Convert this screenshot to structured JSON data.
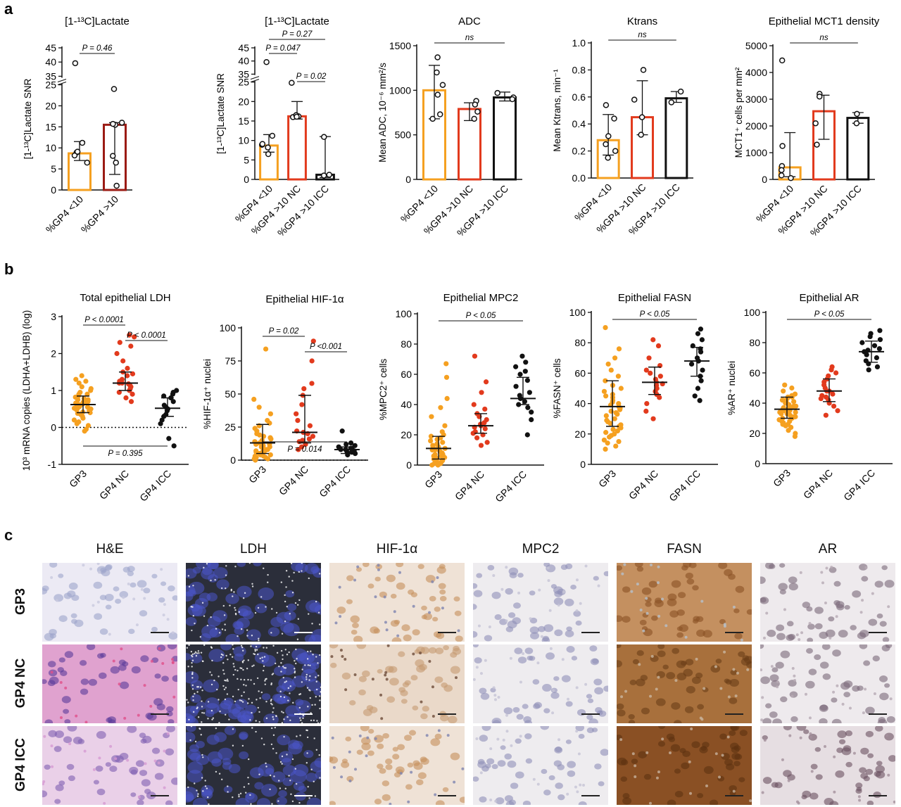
{
  "panel_labels": {
    "a": "a",
    "b": "b",
    "c": "c"
  },
  "colors": {
    "orange": "#f5a020",
    "red": "#e23a1d",
    "darkred": "#9b1b14",
    "black": "#111111"
  },
  "chart_data": [
    {
      "type": "bar",
      "panel": "a",
      "title": "[1-¹³C]Lactate",
      "ylabel": "[1-¹³C]Lactate SNR",
      "categories": [
        "%GP4 <10",
        "%GP4 >10"
      ],
      "values": [
        8.7,
        15.5
      ],
      "ylim": [
        0,
        45
      ],
      "axis_break": [
        25,
        35
      ],
      "yticks": [
        "0",
        "5",
        "10",
        "15",
        "20",
        "25",
        "35",
        "40",
        "45"
      ],
      "points": [
        [
          8.9,
          8.2,
          6.5,
          9.1,
          11.2,
          39.6
        ],
        [
          15.5,
          15.7,
          16.0,
          24.0,
          8.1,
          6.5,
          1.0
        ]
      ],
      "errors": [
        [
          7.0,
          11.5
        ],
        [
          3.7,
          16.0
        ]
      ],
      "colors": [
        "#f5a020",
        "#9b1b14"
      ],
      "annotations": [
        {
          "text": "P = 0.46",
          "from": 0,
          "to": 1
        }
      ]
    },
    {
      "type": "bar",
      "panel": "a",
      "title": "[1-¹³C]Lactate",
      "ylabel": "[1-¹³C]Lactate SNR",
      "categories": [
        "%GP4 <10",
        "%GP4 >10 NC",
        "%GP4 >10 ICC"
      ],
      "values": [
        8.7,
        16.2,
        1.2
      ],
      "ylim": [
        0,
        45
      ],
      "axis_break": [
        25,
        35
      ],
      "yticks": [
        "0",
        "5",
        "10",
        "15",
        "20",
        "25",
        "35",
        "40",
        "45"
      ],
      "points": [
        [
          8.9,
          8.2,
          6.5,
          9.1,
          11.2,
          39.6
        ],
        [
          16.0,
          16.2,
          16.5,
          24.8,
          16.1
        ],
        [
          1.0,
          1.2,
          10.9
        ]
      ],
      "errors": [
        [
          7.0,
          11.5
        ],
        [
          15.5,
          20.0
        ],
        [
          0.5,
          11.0
        ]
      ],
      "colors": [
        "#f5a020",
        "#e23a1d",
        "#111111"
      ],
      "annotations": [
        {
          "text": "P = 0.27",
          "from": 0,
          "to": 2
        },
        {
          "text": "P = 0.047",
          "from": 0,
          "to": 1
        },
        {
          "text": "P = 0.02",
          "from": 1,
          "to": 2
        }
      ]
    },
    {
      "type": "bar",
      "panel": "a",
      "title": "ADC",
      "ylabel": "Mean ADC, 10⁻⁶ mm²/s",
      "categories": [
        "%GP4 <10",
        "%GP4 >10 NC",
        "%GP4 >10 ICC"
      ],
      "values": [
        1000,
        790,
        920
      ],
      "ylim": [
        0,
        1500
      ],
      "yticks": [
        "0",
        "500",
        "1000",
        "1500"
      ],
      "points": [
        [
          1370,
          1200,
          1060,
          950,
          730,
          680
        ],
        [
          880,
          840,
          760,
          680
        ],
        [
          970,
          920,
          900
        ]
      ],
      "errors": [
        [
          680,
          1280
        ],
        [
          660,
          860
        ],
        [
          880,
          980
        ]
      ],
      "colors": [
        "#f5a020",
        "#e23a1d",
        "#111111"
      ],
      "annotations": [
        {
          "text": "ns",
          "from": 0,
          "to": 2
        }
      ]
    },
    {
      "type": "bar",
      "panel": "a",
      "title": "Ktrans",
      "ylabel": "Mean Ktrans, min⁻¹",
      "categories": [
        "%GP4 <10",
        "%GP4 >10 NC",
        "%GP4 >10 ICC"
      ],
      "values": [
        0.28,
        0.45,
        0.59
      ],
      "ylim": [
        0,
        1.0
      ],
      "yticks": [
        "0.0",
        "0.2",
        "0.4",
        "0.6",
        "0.8",
        "1.0"
      ],
      "points": [
        [
          0.54,
          0.44,
          0.31,
          0.25,
          0.2,
          0.15
        ],
        [
          0.8,
          0.58,
          0.45,
          0.32
        ],
        [
          0.64,
          0.56
        ]
      ],
      "errors": [
        [
          0.17,
          0.47
        ],
        [
          0.32,
          0.72
        ],
        [
          0.56,
          0.64
        ]
      ],
      "colors": [
        "#f5a020",
        "#e23a1d",
        "#111111"
      ],
      "annotations": [
        {
          "text": "ns",
          "from": 0,
          "to": 2
        }
      ]
    },
    {
      "type": "bar",
      "panel": "a",
      "title": "Epithelial MCT1 density",
      "ylabel": "MCT1⁺ cells per mm²",
      "categories": [
        "%GP4 <10",
        "%GP4 >10 NC",
        "%GP4 >10 ICC"
      ],
      "values": [
        450,
        2550,
        2300
      ],
      "ylim": [
        0,
        5000
      ],
      "yticks": [
        "0",
        "1000",
        "2000",
        "3000",
        "4000",
        "5000"
      ],
      "points": [
        [
          4450,
          1250,
          500,
          350,
          150,
          50
        ],
        [
          3200,
          3100,
          2100,
          1300
        ],
        [
          2450,
          2100
        ]
      ],
      "errors": [
        [
          100,
          1750
        ],
        [
          1500,
          3150
        ],
        [
          2100,
          2500
        ]
      ],
      "colors": [
        "#f5a020",
        "#e23a1d",
        "#111111"
      ],
      "annotations": [
        {
          "text": "ns",
          "from": 0,
          "to": 2
        }
      ]
    },
    {
      "type": "scatter",
      "panel": "b",
      "title": "Total epithelial LDH",
      "ylabel": "10³ mRNA copies (LDHA+LDHB) (log)",
      "categories": [
        "GP3",
        "GP4 NC",
        "GP4 ICC"
      ],
      "medians": [
        0.62,
        1.2,
        0.52
      ],
      "iqr": [
        [
          0.4,
          0.85
        ],
        [
          1.0,
          1.5
        ],
        [
          0.3,
          0.8
        ]
      ],
      "ylim": [
        -1,
        3
      ],
      "yticks": [
        "-1",
        "0",
        "1",
        "2",
        "3"
      ],
      "series": [
        {
          "values": [
            1.4,
            1.3,
            1.25,
            1.2,
            1.1,
            1.05,
            1.0,
            0.95,
            0.9,
            0.9,
            0.85,
            0.82,
            0.8,
            0.78,
            0.75,
            0.72,
            0.7,
            0.7,
            0.68,
            0.66,
            0.64,
            0.62,
            0.6,
            0.6,
            0.58,
            0.56,
            0.55,
            0.52,
            0.5,
            0.48,
            0.45,
            0.42,
            0.4,
            0.38,
            0.35,
            0.3,
            0.25,
            0.2,
            0.15,
            0.1,
            0.05,
            -0.05,
            -0.1,
            0.5,
            0.65,
            0.75
          ]
        },
        {
          "values": [
            2.5,
            2.45,
            2.3,
            2.2,
            2.0,
            1.8,
            1.6,
            1.5,
            1.45,
            1.4,
            1.3,
            1.25,
            1.2,
            1.2,
            1.18,
            1.15,
            1.1,
            1.05,
            1.0,
            0.95,
            0.9,
            0.8,
            0.7
          ]
        },
        {
          "values": [
            1.0,
            0.95,
            0.9,
            0.85,
            0.8,
            0.7,
            0.6,
            0.55,
            0.5,
            0.45,
            0.35,
            0.3,
            0.2,
            0.1,
            -0.3,
            -0.5
          ]
        }
      ],
      "colors": [
        "#f5a020",
        "#e23a1d",
        "#111111"
      ],
      "annotations": [
        {
          "text": "P < 0.0001",
          "from": 0,
          "to": 1
        },
        {
          "text": "P < 0.0001",
          "from": 1,
          "to": 2
        },
        {
          "text": "P = 0.395",
          "from": 0,
          "to": 2,
          "below": true
        }
      ],
      "dotted_zero": true
    },
    {
      "type": "scatter",
      "panel": "b",
      "title": "Epithelial HIF-1α",
      "ylabel": "%HIF-1α⁺ nuclei",
      "categories": [
        "GP3",
        "GP4 NC",
        "GP4 ICC"
      ],
      "medians": [
        13,
        21,
        8
      ],
      "iqr": [
        [
          5,
          27
        ],
        [
          13,
          49
        ],
        [
          5,
          10
        ]
      ],
      "ylim": [
        0,
        100
      ],
      "yticks": [
        "0",
        "25",
        "50",
        "75",
        "100"
      ],
      "series": [
        {
          "values": [
            84,
            46,
            40,
            35,
            30,
            28,
            26,
            24,
            22,
            20,
            19,
            18,
            17,
            16,
            15,
            14,
            14,
            13,
            12,
            12,
            11,
            10,
            10,
            9,
            9,
            8,
            8,
            7,
            7,
            6,
            6,
            5,
            5,
            4,
            4,
            3,
            3,
            2,
            2,
            1,
            1,
            0
          ]
        },
        {
          "values": [
            90,
            75,
            58,
            54,
            49,
            42,
            35,
            30,
            26,
            22,
            21,
            20,
            18,
            16,
            15,
            14,
            12,
            10,
            8
          ]
        },
        {
          "values": [
            22,
            13,
            12,
            11,
            10,
            9,
            9,
            8,
            8,
            7,
            6,
            6,
            5,
            4
          ]
        }
      ],
      "colors": [
        "#f5a020",
        "#e23a1d",
        "#111111"
      ],
      "annotations": [
        {
          "text": "P = 0.02",
          "from": 0,
          "to": 1
        },
        {
          "text": "P <0.001",
          "from": 1,
          "to": 2
        },
        {
          "text": "P = 0.014",
          "from": 0,
          "to": 2,
          "below": true
        }
      ],
      "dotted_zero": true
    },
    {
      "type": "scatter",
      "panel": "b",
      "title": "Epithelial MPC2",
      "ylabel": "%MPC2⁺ cells",
      "categories": [
        "GP3",
        "GP4 NC",
        "GP4 ICC"
      ],
      "medians": [
        11,
        26,
        44
      ],
      "iqr": [
        [
          4,
          19
        ],
        [
          21,
          34
        ],
        [
          40,
          58
        ]
      ],
      "ylim": [
        0,
        100
      ],
      "yticks": [
        "0",
        "20",
        "40",
        "60",
        "80",
        "100"
      ],
      "series": [
        {
          "values": [
            67,
            58,
            44,
            38,
            32,
            26,
            22,
            20,
            19,
            18,
            17,
            16,
            15,
            14,
            13,
            12,
            12,
            11,
            10,
            10,
            9,
            9,
            8,
            8,
            7,
            7,
            6,
            6,
            5,
            5,
            4,
            4,
            3,
            3,
            2,
            2,
            1,
            1,
            0,
            0
          ]
        },
        {
          "values": [
            72,
            55,
            48,
            40,
            37,
            34,
            32,
            30,
            28,
            27,
            26,
            25,
            24,
            22,
            21,
            20,
            18,
            15,
            13
          ]
        },
        {
          "values": [
            72,
            68,
            65,
            62,
            60,
            56,
            52,
            48,
            46,
            44,
            42,
            40,
            38,
            35,
            30,
            20
          ]
        }
      ],
      "colors": [
        "#f5a020",
        "#e23a1d",
        "#111111"
      ],
      "annotations": [
        {
          "text": "P < 0.05",
          "from": 0,
          "to": 2
        }
      ]
    },
    {
      "type": "scatter",
      "panel": "b",
      "title": "Epithelial FASN",
      "ylabel": "%FASN⁺ cells",
      "categories": [
        "GP3",
        "GP4 NC",
        "GP4 ICC"
      ],
      "medians": [
        38,
        54,
        68
      ],
      "iqr": [
        [
          25,
          55
        ],
        [
          46,
          64
        ],
        [
          58,
          77
        ]
      ],
      "ylim": [
        0,
        100
      ],
      "yticks": [
        "0",
        "20",
        "40",
        "60",
        "80",
        "100"
      ],
      "series": [
        {
          "values": [
            90,
            76,
            70,
            66,
            62,
            58,
            55,
            52,
            50,
            48,
            46,
            44,
            42,
            40,
            38,
            37,
            36,
            35,
            34,
            32,
            30,
            28,
            26,
            25,
            24,
            22,
            20,
            18,
            16,
            14,
            12,
            10,
            45,
            41,
            39,
            33,
            29,
            27,
            23,
            21,
            19,
            15
          ]
        },
        {
          "values": [
            82,
            78,
            70,
            65,
            62,
            60,
            58,
            56,
            54,
            53,
            52,
            50,
            48,
            46,
            44,
            40,
            35,
            30
          ]
        },
        {
          "values": [
            89,
            86,
            82,
            78,
            76,
            74,
            70,
            68,
            66,
            62,
            58,
            55,
            50,
            45,
            42
          ]
        }
      ],
      "colors": [
        "#f5a020",
        "#e23a1d",
        "#111111"
      ],
      "annotations": [
        {
          "text": "P < 0.05",
          "from": 0,
          "to": 2
        }
      ]
    },
    {
      "type": "scatter",
      "panel": "b",
      "title": "Epithelial AR",
      "ylabel": "%AR⁺ nuclei",
      "categories": [
        "GP3",
        "GP4 NC",
        "GP4 ICC"
      ],
      "medians": [
        36,
        48,
        74
      ],
      "iqr": [
        [
          30,
          44
        ],
        [
          41,
          56
        ],
        [
          67,
          81
        ]
      ],
      "ylim": [
        0,
        100
      ],
      "yticks": [
        "0",
        "20",
        "40",
        "60",
        "80",
        "100"
      ],
      "series": [
        {
          "values": [
            52,
            50,
            48,
            46,
            45,
            44,
            43,
            42,
            41,
            40,
            39,
            38,
            37,
            36,
            36,
            35,
            35,
            34,
            34,
            33,
            32,
            31,
            30,
            29,
            28,
            27,
            26,
            25,
            24,
            22,
            20,
            18,
            44,
            42,
            40,
            38,
            37,
            33,
            31,
            30,
            28,
            26
          ]
        },
        {
          "values": [
            64,
            62,
            60,
            58,
            56,
            54,
            52,
            50,
            48,
            48,
            46,
            45,
            44,
            43,
            42,
            40,
            38,
            35,
            32
          ]
        },
        {
          "values": [
            88,
            86,
            84,
            82,
            80,
            78,
            76,
            75,
            74,
            72,
            70,
            68,
            66,
            64,
            62
          ]
        }
      ],
      "colors": [
        "#f5a020",
        "#e23a1d",
        "#111111"
      ],
      "annotations": [
        {
          "text": "P < 0.05",
          "from": 0,
          "to": 2
        }
      ]
    }
  ],
  "histology": {
    "columns": [
      "H&E",
      "LDH",
      "HIF-1α",
      "MPC2",
      "FASN",
      "AR"
    ],
    "rows": [
      "GP3",
      "GP4 NC",
      "GP4 ICC"
    ]
  }
}
